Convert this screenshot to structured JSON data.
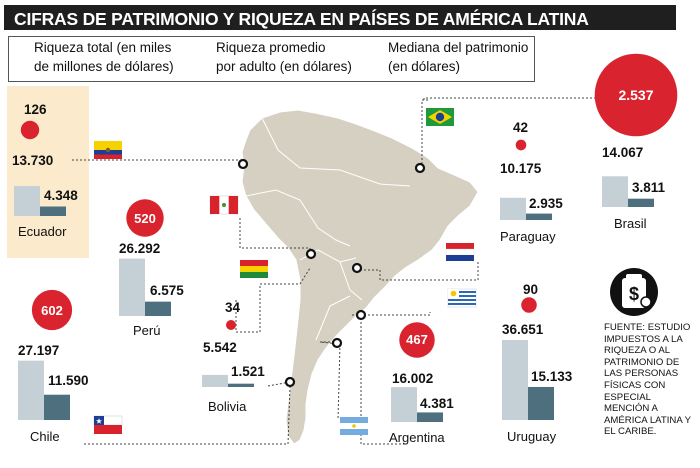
{
  "title": "CIFRAS DE PATRIMONIO Y RIQUEZA EN PAÍSES DE AMÉRICA LATINA",
  "legend": {
    "total_line1": "Riqueza total (en miles",
    "total_line2": "de millones de dólares)",
    "avg_line1": "Riqueza promedio",
    "avg_line2": "por adulto (en dólares)",
    "median_line1": "Mediana del patrimonio",
    "median_line2": "(en dólares)"
  },
  "colors": {
    "total": "#d9232e",
    "average": "#c5d0d6",
    "median": "#4d6f7e",
    "map_land": "#d6d0c3",
    "highlight": "#fbeacb"
  },
  "countries": {
    "ecuador": {
      "name": "Ecuador",
      "total": "126",
      "avg": "13.730",
      "median": "4.348"
    },
    "peru": {
      "name": "Perú",
      "total": "520",
      "avg": "26.292",
      "median": "6.575"
    },
    "bolivia": {
      "name": "Bolivia",
      "total": "34",
      "avg": "5.542",
      "median": "1.521"
    },
    "chile": {
      "name": "Chile",
      "total": "602",
      "avg": "27.197",
      "median": "11.590"
    },
    "paraguay": {
      "name": "Paraguay",
      "total": "42",
      "avg": "10.175",
      "median": "2.935"
    },
    "brasil": {
      "name": "Brasil",
      "total": "2.537",
      "avg": "14.067",
      "median": "3.811"
    },
    "argentina": {
      "name": "Argentina",
      "total": "467",
      "avg": "16.002",
      "median": "4.381"
    },
    "uruguay": {
      "name": "Uruguay",
      "total": "90",
      "avg": "36.651",
      "median": "15.133"
    }
  },
  "source": "FUENTE: ESTUDIO IMPUESTOS A LA RIQUEZA O AL PATRIMONIO DE LAS PERSONAS FÍSICAS CON ESPECIAL MENCIÓN A AMÉRICA LATINA Y EL CARIBE.",
  "chart_data": {
    "type": "bar",
    "title": "CIFRAS DE PATRIMONIO Y RIQUEZA EN PAÍSES DE AMÉRICA LATINA",
    "categories": [
      "Ecuador",
      "Perú",
      "Bolivia",
      "Chile",
      "Paraguay",
      "Brasil",
      "Argentina",
      "Uruguay"
    ],
    "series": [
      {
        "name": "Riqueza total (en miles de millones de dólares)",
        "values": [
          126,
          520,
          34,
          602,
          42,
          2537,
          467,
          90
        ]
      },
      {
        "name": "Riqueza promedio por adulto (en dólares)",
        "values": [
          13730,
          26292,
          5542,
          27197,
          10175,
          14067,
          16002,
          36651
        ]
      },
      {
        "name": "Mediana del patrimonio (en dólares)",
        "values": [
          4348,
          6575,
          1521,
          11590,
          2935,
          3811,
          4381,
          15133
        ]
      }
    ]
  }
}
